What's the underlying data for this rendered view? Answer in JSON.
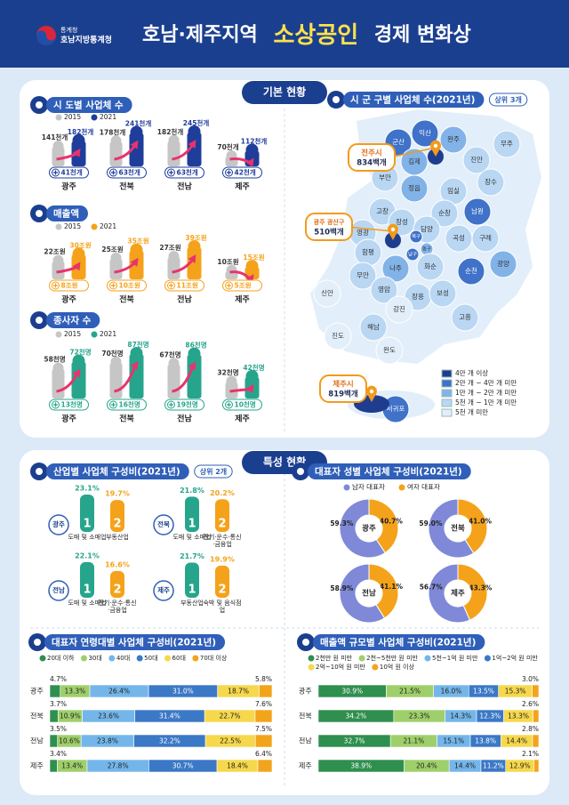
{
  "header": {
    "org": "통계청",
    "office": "호남지방통계청",
    "title_region": "호남·제주지역",
    "title_highlight": "소상공인",
    "title_rest": "경제 변화상"
  },
  "sections": [
    "기본 현황",
    "특성 현황"
  ],
  "chart_data": [
    {
      "type": "pictobar",
      "title": "시 도별 사업체 수",
      "categories": [
        "광주",
        "전북",
        "전남",
        "제주"
      ],
      "series": [
        {
          "name": "2015",
          "color": "#c6c6c6",
          "values": [
            141,
            178,
            182,
            70
          ],
          "value_labels": [
            "141천개",
            "178천개",
            "182천개",
            "70천개"
          ]
        },
        {
          "name": "2021",
          "color": "#1f3d9a",
          "values": [
            182,
            241,
            245,
            112
          ],
          "value_labels": [
            "182천개",
            "241천개",
            "245천개",
            "112천개"
          ]
        }
      ],
      "increase": {
        "values": [
          41,
          63,
          63,
          42
        ],
        "value_labels": [
          "41천개",
          "63천개",
          "63천개",
          "42천개"
        ]
      }
    },
    {
      "type": "pictobar",
      "title": "매출액",
      "categories": [
        "광주",
        "전북",
        "전남",
        "제주"
      ],
      "series": [
        {
          "name": "2015",
          "color": "#c6c6c6",
          "values": [
            22,
            25,
            27,
            10
          ],
          "value_labels": [
            "22조원",
            "25조원",
            "27조원",
            "10조원"
          ]
        },
        {
          "name": "2021",
          "color": "#f5a21b",
          "values": [
            30,
            35,
            39,
            15
          ],
          "value_labels": [
            "30조원",
            "35조원",
            "39조원",
            "15조원"
          ]
        }
      ],
      "increase": {
        "values": [
          8,
          10,
          11,
          5
        ],
        "value_labels": [
          "8조원",
          "10조원",
          "11조원",
          "5조원"
        ]
      }
    },
    {
      "type": "pictobar",
      "title": "종사자 수",
      "categories": [
        "광주",
        "전북",
        "전남",
        "제주"
      ],
      "series": [
        {
          "name": "2015",
          "color": "#c6c6c6",
          "values": [
            58,
            70,
            67,
            32
          ],
          "value_labels": [
            "58천명",
            "70천명",
            "67천명",
            "32천명"
          ]
        },
        {
          "name": "2021",
          "color": "#27a58c",
          "values": [
            72,
            87,
            86,
            42
          ],
          "value_labels": [
            "72천명",
            "87천명",
            "86천명",
            "42천명"
          ]
        }
      ],
      "increase": {
        "values": [
          13,
          16,
          19,
          10
        ],
        "value_labels": [
          "13천명",
          "16천명",
          "19천명",
          "10천명"
        ]
      }
    },
    {
      "type": "map",
      "title": "시 군 구별 사업체 수(2021년)",
      "badge": "상위 3개",
      "legend": [
        {
          "label": "4만 개 이상",
          "color": "#1f3d8f"
        },
        {
          "label": "2만 개 ~ 4만 개 미만",
          "color": "#3f72c8"
        },
        {
          "label": "1만 개 ~ 2만 개 미만",
          "color": "#82b3e8"
        },
        {
          "label": "5천 개 ~ 1만 개 미만",
          "color": "#b9d7f3"
        },
        {
          "label": "5천 개 미만",
          "color": "#e2eef9"
        }
      ],
      "regions": [
        {
          "name": "익산",
          "level": 1
        },
        {
          "name": "군산",
          "level": 1
        },
        {
          "name": "완주",
          "level": 2
        },
        {
          "name": "무주",
          "level": 3
        },
        {
          "name": "진안",
          "level": 3
        },
        {
          "name": "김제",
          "level": 2
        },
        {
          "name": "부안",
          "level": 3
        },
        {
          "name": "정읍",
          "level": 2
        },
        {
          "name": "임실",
          "level": 3
        },
        {
          "name": "장수",
          "level": 3
        },
        {
          "name": "고창",
          "level": 3
        },
        {
          "name": "순창",
          "level": 3
        },
        {
          "name": "남원",
          "level": 1
        },
        {
          "name": "장성",
          "level": 3
        },
        {
          "name": "담양",
          "level": 3
        },
        {
          "name": "영광",
          "level": 3
        },
        {
          "name": "곡성",
          "level": 3
        },
        {
          "name": "구례",
          "level": 3
        },
        {
          "name": "함평",
          "level": 3
        },
        {
          "name": "북구",
          "level": 1
        },
        {
          "name": "동구",
          "level": 2
        },
        {
          "name": "남구",
          "level": 1
        },
        {
          "name": "나주",
          "level": 2
        },
        {
          "name": "화순",
          "level": 3
        },
        {
          "name": "광양",
          "level": 2
        },
        {
          "name": "순천",
          "level": 1
        },
        {
          "name": "무안",
          "level": 3
        },
        {
          "name": "신안",
          "level": 4
        },
        {
          "name": "영암",
          "level": 3
        },
        {
          "name": "장흥",
          "level": 3
        },
        {
          "name": "보성",
          "level": 3
        },
        {
          "name": "강진",
          "level": 4
        },
        {
          "name": "해남",
          "level": 3
        },
        {
          "name": "진도",
          "level": 4
        },
        {
          "name": "완도",
          "level": 4
        },
        {
          "name": "고흥",
          "level": 3
        },
        {
          "name": "서귀포",
          "level": 1
        }
      ],
      "callouts": {
        "names": [
          "전주시",
          "광주 광산구",
          "제주시"
        ],
        "values": [
          834,
          510,
          819
        ],
        "value_labels": [
          "834백개",
          "510백개",
          "819백개"
        ]
      }
    },
    {
      "type": "rank-bars",
      "title": "산업별 사업체 구성비(2021년)",
      "badge": "상위 2개",
      "rank_labels": [
        1,
        2
      ],
      "colors": [
        "#27a58c",
        "#f5a21b"
      ],
      "groups": [
        {
          "region": "광주",
          "categories": [
            "도매 및 소매업",
            "부동산업"
          ],
          "values": [
            23.1,
            19.7
          ],
          "value_labels": [
            "23.1%",
            "19.7%"
          ]
        },
        {
          "region": "전북",
          "categories": [
            "도매 및 소매업",
            "전기·운수·통신·금융업"
          ],
          "values": [
            21.8,
            20.2
          ],
          "value_labels": [
            "21.8%",
            "20.2%"
          ]
        },
        {
          "region": "전남",
          "categories": [
            "도매 및 소매업",
            "전기·운수·통신·금융업"
          ],
          "values": [
            22.1,
            16.6
          ],
          "value_labels": [
            "22.1%",
            "16.6%"
          ]
        },
        {
          "region": "제주",
          "categories": [
            "부동산업",
            "숙박 및 음식점업"
          ],
          "values": [
            21.7,
            19.9
          ],
          "value_labels": [
            "21.7%",
            "19.9%"
          ]
        }
      ]
    },
    {
      "type": "donut",
      "title": "대표자 성별 사업체 구성비(2021년)",
      "categories": [
        "광주",
        "전북",
        "전남",
        "제주"
      ],
      "series": [
        {
          "name": "남자 대표자",
          "color": "#7f89d8",
          "values": [
            59.3,
            59.0,
            58.9,
            56.7
          ],
          "value_labels": [
            "59.3%",
            "59.0%",
            "58.9%",
            "56.7%"
          ]
        },
        {
          "name": "여자 대표자",
          "color": "#f5a21b",
          "values": [
            40.7,
            41.0,
            41.1,
            43.3
          ],
          "value_labels": [
            "40.7%",
            "41.0%",
            "41.1%",
            "43.3%"
          ]
        }
      ]
    },
    {
      "type": "stacked-bar",
      "orientation": "horizontal",
      "title": "대표자 연령대별 사업체 구성비(2021년)",
      "categories": [
        "광주",
        "전북",
        "전남",
        "제주"
      ],
      "series": [
        {
          "name": "20대 이하",
          "color": "#2f8f4e",
          "values": [
            4.7,
            3.7,
            3.5,
            3.4
          ],
          "value_labels": [
            "4.7%",
            "3.7%",
            "3.5%",
            "3.4%"
          ]
        },
        {
          "name": "30대",
          "color": "#9fcf6a",
          "values": [
            13.3,
            10.9,
            10.6,
            13.4
          ],
          "value_labels": [
            "13.3%",
            "10.9%",
            "10.6%",
            "13.4%"
          ]
        },
        {
          "name": "40대",
          "color": "#74b6ea",
          "values": [
            26.4,
            23.6,
            23.8,
            27.8
          ],
          "value_labels": [
            "26.4%",
            "23.6%",
            "23.8%",
            "27.8%"
          ]
        },
        {
          "name": "50대",
          "color": "#3b78c6",
          "values": [
            31.0,
            31.4,
            32.2,
            30.7
          ],
          "value_labels": [
            "31.0%",
            "31.4%",
            "32.2%",
            "30.7%"
          ]
        },
        {
          "name": "60대",
          "color": "#f6d84c",
          "values": [
            18.7,
            22.7,
            22.5,
            18.4
          ],
          "value_labels": [
            "18.7%",
            "22.7%",
            "22.5%",
            "18.4%"
          ]
        },
        {
          "name": "70대 이상",
          "color": "#f2a41b",
          "values": [
            5.8,
            7.6,
            7.5,
            6.4
          ],
          "value_labels": [
            "5.8%",
            "7.6%",
            "7.5%",
            "6.4%"
          ]
        }
      ]
    },
    {
      "type": "stacked-bar",
      "orientation": "horizontal",
      "title": "매출액 규모별 사업체 구성비(2021년)",
      "categories": [
        "광주",
        "전북",
        "전남",
        "제주"
      ],
      "series": [
        {
          "name": "2천만 원 미만",
          "color": "#2f8f4e",
          "values": [
            30.9,
            34.2,
            32.7,
            38.9
          ],
          "value_labels": [
            "30.9%",
            "34.2%",
            "32.7%",
            "38.9%"
          ]
        },
        {
          "name": "2천~5천만 원 미만",
          "color": "#9fcf6a",
          "values": [
            21.5,
            23.3,
            21.1,
            20.4
          ],
          "value_labels": [
            "21.5%",
            "23.3%",
            "21.1%",
            "20.4%"
          ]
        },
        {
          "name": "5천~1억 원 미만",
          "color": "#74b6ea",
          "values": [
            16.0,
            14.3,
            15.1,
            14.4
          ],
          "value_labels": [
            "16.0%",
            "14.3%",
            "15.1%",
            "14.4%"
          ]
        },
        {
          "name": "1억~2억 원 미만",
          "color": "#3b78c6",
          "values": [
            13.5,
            12.3,
            13.8,
            11.2
          ],
          "value_labels": [
            "13.5%",
            "12.3%",
            "13.8%",
            "11.2%"
          ]
        },
        {
          "name": "2억~10억 원 미만",
          "color": "#f6d84c",
          "values": [
            15.3,
            13.3,
            14.4,
            12.9
          ],
          "value_labels": [
            "15.3%",
            "13.3%",
            "14.4%",
            "12.9%"
          ]
        },
        {
          "name": "10억 원 이상",
          "color": "#f2a41b",
          "values": [
            3.0,
            2.6,
            2.8,
            2.1
          ],
          "value_labels": [
            "3.0%",
            "2.6%",
            "2.8%",
            "2.1%"
          ]
        }
      ]
    }
  ]
}
